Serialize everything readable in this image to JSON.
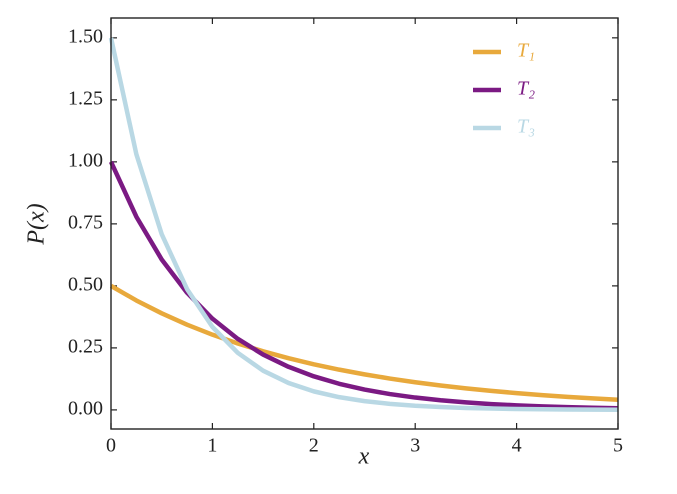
{
  "chart_data": {
    "type": "line",
    "x_label": "x",
    "y_label": "P(x)",
    "x": [
      0,
      0.25,
      0.5,
      0.75,
      1,
      1.25,
      1.5,
      1.75,
      2,
      2.25,
      2.5,
      2.75,
      3,
      3.25,
      3.5,
      3.75,
      4,
      4.25,
      4.5,
      4.75,
      5
    ],
    "series": [
      {
        "name": "T₁",
        "color": "#e8a93c",
        "values": [
          0.5,
          0.4412,
          0.3894,
          0.3436,
          0.3033,
          0.2676,
          0.2362,
          0.2084,
          0.1839,
          0.1623,
          0.1433,
          0.1264,
          0.1116,
          0.0985,
          0.0869,
          0.0767,
          0.0677,
          0.0597,
          0.0527,
          0.0465,
          0.041
        ]
      },
      {
        "name": "T₂",
        "color": "#7b1a83",
        "values": [
          1,
          0.7788,
          0.6065,
          0.4724,
          0.3679,
          0.2865,
          0.2231,
          0.1738,
          0.1353,
          0.1054,
          0.0821,
          0.0639,
          0.0498,
          0.0388,
          0.0302,
          0.0235,
          0.0183,
          0.0143,
          0.0111,
          0.0087,
          0.0067
        ]
      },
      {
        "name": "T₃",
        "color": "#b9d8e4",
        "values": [
          1.5,
          1.0309,
          0.7085,
          0.487,
          0.3347,
          0.2301,
          0.1581,
          0.1087,
          0.0747,
          0.0514,
          0.0353,
          0.0243,
          0.0167,
          0.0115,
          0.0079,
          0.0054,
          0.0037,
          0.0026,
          0.0018,
          0.0012,
          0.0008
        ]
      }
    ],
    "xlim": [
      0,
      5
    ],
    "ylim": [
      -0.077,
      1.58
    ],
    "xticks": [
      0,
      1,
      2,
      3,
      4,
      5
    ],
    "yticks": [
      {
        "value": 0,
        "label": "0.00"
      },
      {
        "value": 0.25,
        "label": "0.25"
      },
      {
        "value": 0.5,
        "label": "0.50"
      },
      {
        "value": 0.75,
        "label": "0.75"
      },
      {
        "value": 1,
        "label": "1.00"
      },
      {
        "value": 1.25,
        "label": "1.25"
      },
      {
        "value": 1.5,
        "label": "1.50"
      }
    ],
    "legend": "upper right",
    "grid": false
  }
}
